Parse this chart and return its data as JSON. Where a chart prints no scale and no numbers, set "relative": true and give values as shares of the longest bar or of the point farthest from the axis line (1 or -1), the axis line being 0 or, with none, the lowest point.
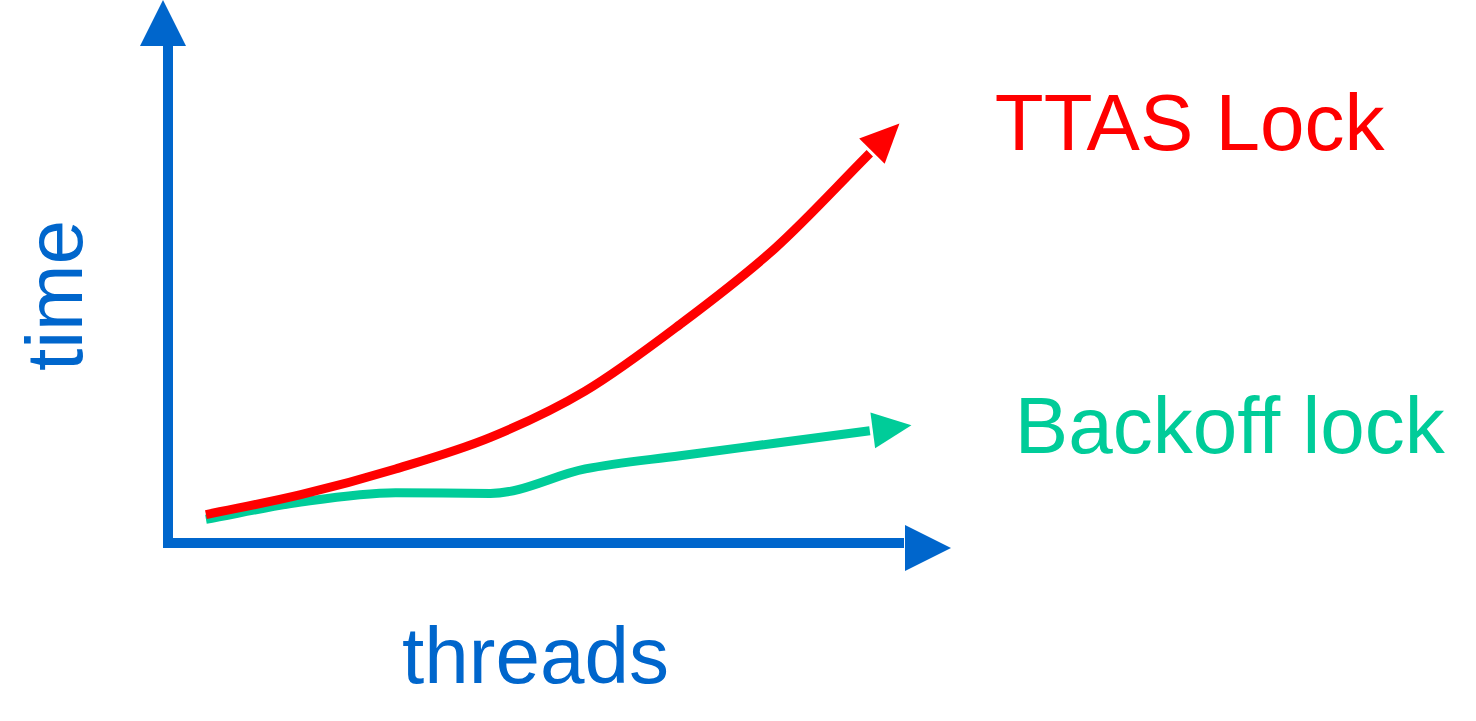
{
  "chart_data": {
    "type": "line",
    "xlabel": "threads",
    "ylabel": "time",
    "relative": true,
    "categories": [
      null,
      null,
      null,
      null,
      null,
      null,
      null,
      null
    ],
    "series": [
      {
        "name": "TTAS Lock",
        "color": "#ff0000",
        "values": [
          0.073,
          0.124,
          0.19,
          0.271,
          0.39,
          0.561,
          0.756,
          1
        ]
      },
      {
        "name": "Backoff lock",
        "color": "#00cc99",
        "values": [
          0.061,
          0.105,
          0.129,
          0.127,
          0.19,
          0.224,
          0.256,
          0.288
        ]
      }
    ],
    "grid": false,
    "legend": "right",
    "marker": "none",
    "line_style": "solid"
  }
}
